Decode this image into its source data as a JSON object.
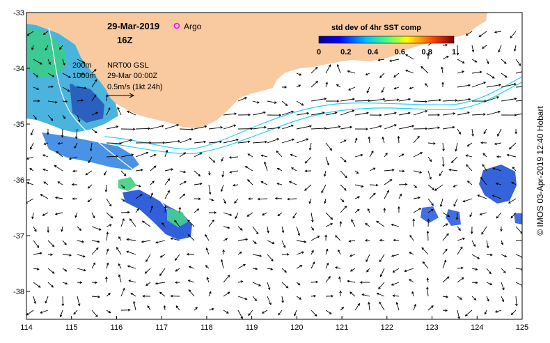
{
  "map": {
    "date": "29-Mar-2019",
    "time": "16Z",
    "argo_label": "Argo",
    "legend": {
      "title": "std dev of 4hr SST comp",
      "ticks": [
        "0",
        "0.2",
        "0.4",
        "0.6",
        "0.8",
        "1"
      ]
    },
    "isobaths": [
      "200m",
      "1000m"
    ],
    "product": "NRT00 GSL",
    "product_time": "29-Mar 00:00Z",
    "scale_arrow_label": "0.5m/s (1kt 24h)",
    "credit": "© IMOS 03-Apr-2019 12:40 Hobart",
    "x_ticks": [
      "114",
      "115",
      "116",
      "117",
      "118",
      "119",
      "120",
      "121",
      "122",
      "123",
      "124",
      "125"
    ],
    "y_ticks": [
      "-33",
      "-34",
      "-35",
      "-36",
      "-37",
      "-38"
    ],
    "colors": {
      "land": "#f9c9a0",
      "isobath": "#22d3ee",
      "argo": "#ff00ff",
      "frame": "#000000"
    }
  }
}
